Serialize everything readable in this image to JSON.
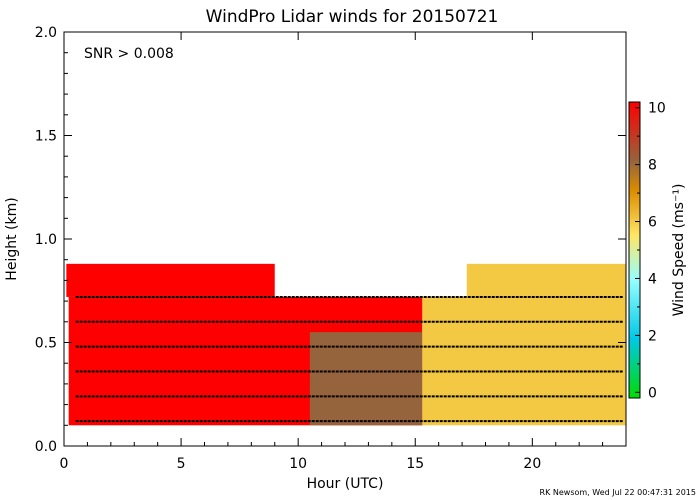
{
  "chart_data": {
    "type": "heatmap",
    "title": "WindPro Lidar winds for 20150721",
    "xlabel": "Hour (UTC)",
    "ylabel": "Height (km)",
    "xlim": [
      0,
      24
    ],
    "ylim": [
      0,
      2.0
    ],
    "xticks": [
      "0",
      "5",
      "10",
      "15",
      "20"
    ],
    "xtick_values": [
      0,
      5,
      10,
      15,
      20
    ],
    "yticks": [
      "0.0",
      "0.5",
      "1.0",
      "1.5",
      "2.0"
    ],
    "ytick_values": [
      0,
      0.5,
      1.0,
      1.5,
      2.0
    ],
    "annotation": "SNR > 0.008",
    "colorbar": {
      "label": "Wind Speed (ms⁻¹)",
      "range": [
        0,
        10
      ],
      "ticks": [
        "0",
        "2",
        "4",
        "6",
        "8",
        "10"
      ],
      "tick_values": [
        0,
        2,
        4,
        6,
        8,
        10
      ]
    },
    "regions": [
      {
        "x": [
          0.2,
          15.3
        ],
        "y": [
          0.1,
          0.72
        ],
        "speed": 10
      },
      {
        "x": [
          0.1,
          9.0
        ],
        "y": [
          0.72,
          0.88
        ],
        "speed": 10
      },
      {
        "x": [
          9.0,
          15.3
        ],
        "y": [
          0.6,
          0.72
        ],
        "speed": 10
      },
      {
        "x": [
          10.5,
          15.3
        ],
        "y": [
          0.1,
          0.55
        ],
        "speed": 8
      },
      {
        "x": [
          15.3,
          24.0
        ],
        "y": [
          0.1,
          0.72
        ],
        "speed": 6
      },
      {
        "x": [
          17.2,
          24.0
        ],
        "y": [
          0.72,
          0.88
        ],
        "speed": 6
      }
    ],
    "wind_barb_heights": [
      0.12,
      0.24,
      0.36,
      0.48,
      0.6,
      0.72
    ]
  },
  "credit": "RK Newsom, Wed Jul 22 00:47:31 2015"
}
